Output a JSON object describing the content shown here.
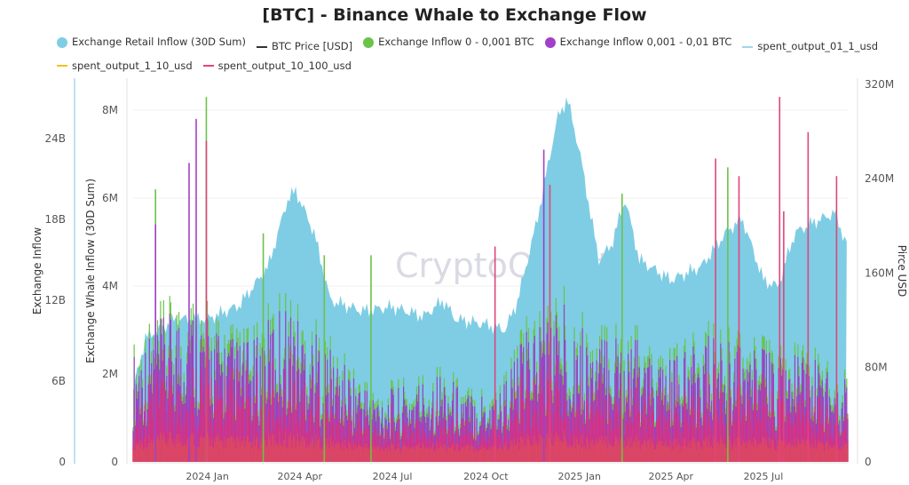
{
  "chart_data": {
    "type": "area",
    "title": "[BTC] - Binance Whale to Exchange Flow",
    "watermark": "CryptoQuant",
    "legend": [
      {
        "name": "Exchange Retail Inflow (30D Sum)",
        "color": "#7ecde4",
        "marker": "dot"
      },
      {
        "name": "BTC Price [USD]",
        "color": "#333333",
        "marker": "line"
      },
      {
        "name": "Exchange Inflow 0 - 0,001 BTC",
        "color": "#6cc24a",
        "marker": "dot"
      },
      {
        "name": "Exchange Inflow 0,001 - 0,01 BTC",
        "color": "#a23fc9",
        "marker": "dot"
      },
      {
        "name": "spent_output_01_1_usd",
        "color": "#9fd6ee",
        "marker": "line"
      },
      {
        "name": "spent_output_1_10_usd",
        "color": "#f0c419",
        "marker": "line"
      },
      {
        "name": "spent_output_10_100_usd",
        "color": "#e0457b",
        "marker": "line"
      }
    ],
    "legend_placement": "top",
    "x_axis": {
      "type": "date",
      "range": [
        "2023-10-20",
        "2025-09-22"
      ],
      "ticks": [
        "2024-01-01",
        "2024-04-01",
        "2024-07-01",
        "2024-10-01",
        "2025-01-01",
        "2025-04-01",
        "2025-07-01"
      ],
      "tick_labels": [
        "2024 Jan",
        "2024 Apr",
        "2024 Jul",
        "2024 Oct",
        "2025 Jan",
        "2025 Apr",
        "2025 Jul"
      ]
    },
    "y_axes": {
      "left_outer": {
        "label": "Exchange Inflow",
        "range": [
          0,
          30
        ],
        "unit": "B",
        "tick_labels": [
          "0",
          "6B",
          "12B",
          "18B",
          "24B"
        ]
      },
      "left_inner": {
        "label": "Exchange Whale Inflow (30D Sum)",
        "range": [
          0,
          8.4
        ],
        "unit": "M",
        "tick_labels": [
          "0",
          "2M",
          "4M",
          "6M",
          "8M"
        ]
      },
      "right": {
        "label": "Pirce USD",
        "range": [
          0,
          320
        ],
        "unit": "M",
        "tick_labels": [
          "0",
          "80M",
          "160M",
          "240M",
          "320M"
        ]
      }
    },
    "grid": true,
    "retail_inflow_30d_B": [
      [
        "2023-10-20",
        5.3
      ],
      [
        "2023-11-01",
        9.2
      ],
      [
        "2023-12-01",
        10.6
      ],
      [
        "2024-01-01",
        10.6
      ],
      [
        "2024-02-01",
        11.6
      ],
      [
        "2024-03-01",
        14.5
      ],
      [
        "2024-03-20",
        19.5
      ],
      [
        "2024-03-28",
        20.1
      ],
      [
        "2024-04-15",
        17.0
      ],
      [
        "2024-05-01",
        12.0
      ],
      [
        "2024-06-01",
        11.2
      ],
      [
        "2024-07-01",
        11.5
      ],
      [
        "2024-08-01",
        10.8
      ],
      [
        "2024-08-20",
        12.0
      ],
      [
        "2024-09-01",
        10.6
      ],
      [
        "2024-10-01",
        10.2
      ],
      [
        "2024-10-20",
        9.8
      ],
      [
        "2024-11-01",
        11.9
      ],
      [
        "2024-11-20",
        17.8
      ],
      [
        "2024-12-10",
        25.4
      ],
      [
        "2024-12-20",
        27.0
      ],
      [
        "2025-01-01",
        23.1
      ],
      [
        "2025-01-20",
        15.0
      ],
      [
        "2025-02-01",
        16.0
      ],
      [
        "2025-02-15",
        19.5
      ],
      [
        "2025-03-01",
        15.0
      ],
      [
        "2025-04-01",
        13.5
      ],
      [
        "2025-05-01",
        14.5
      ],
      [
        "2025-05-25",
        17.0
      ],
      [
        "2025-06-10",
        18.1
      ],
      [
        "2025-07-01",
        13.5
      ],
      [
        "2025-07-15",
        13.0
      ],
      [
        "2025-08-01",
        17.0
      ],
      [
        "2025-08-20",
        17.8
      ],
      [
        "2025-09-10",
        18.5
      ],
      [
        "2025-09-20",
        16.2
      ]
    ],
    "inflow_0_001_01_typical_M": [
      [
        "2023-10-20",
        2.0
      ],
      [
        "2023-11-15",
        2.6
      ],
      [
        "2023-12-15",
        3.0
      ],
      [
        "2024-01-15",
        2.4
      ],
      [
        "2024-02-15",
        2.2
      ],
      [
        "2024-03-15",
        3.0
      ],
      [
        "2024-04-15",
        2.4
      ],
      [
        "2024-05-15",
        1.8
      ],
      [
        "2024-06-15",
        1.3
      ],
      [
        "2024-07-15",
        1.4
      ],
      [
        "2024-08-15",
        1.7
      ],
      [
        "2024-09-15",
        1.3
      ],
      [
        "2024-10-15",
        1.4
      ],
      [
        "2024-11-15",
        2.6
      ],
      [
        "2024-12-15",
        3.0
      ],
      [
        "2025-01-15",
        2.2
      ],
      [
        "2025-02-15",
        2.6
      ],
      [
        "2025-03-15",
        1.8
      ],
      [
        "2025-04-15",
        2.0
      ],
      [
        "2025-05-15",
        2.4
      ],
      [
        "2025-06-15",
        2.2
      ],
      [
        "2025-07-15",
        2.0
      ],
      [
        "2025-08-15",
        2.0
      ],
      [
        "2025-09-20",
        1.6
      ]
    ],
    "spikes_M": [
      {
        "date": "2023-11-11",
        "series": "Exchange Inflow 0 - 0,001 BTC",
        "value": 6.2
      },
      {
        "date": "2023-11-11",
        "series": "Exchange Inflow 0,001 - 0,01 BTC",
        "value": 5.4
      },
      {
        "date": "2023-12-14",
        "series": "Exchange Inflow 0,001 - 0,01 BTC",
        "value": 6.8
      },
      {
        "date": "2023-12-21",
        "series": "Exchange Inflow 0,001 - 0,01 BTC",
        "value": 7.8
      },
      {
        "date": "2023-12-31",
        "series": "Exchange Inflow 0 - 0,001 BTC",
        "value": 8.3
      },
      {
        "date": "2023-12-31",
        "series": "spent_output_10_100_usd",
        "value": 7.3
      },
      {
        "date": "2024-02-25",
        "series": "Exchange Inflow 0 - 0,001 BTC",
        "value": 5.2
      },
      {
        "date": "2024-04-25",
        "series": "Exchange Inflow 0 - 0,001 BTC",
        "value": 4.7
      },
      {
        "date": "2024-06-10",
        "series": "Exchange Inflow 0 - 0,001 BTC",
        "value": 4.7
      },
      {
        "date": "2024-10-10",
        "series": "spent_output_10_100_usd",
        "value": 4.9
      },
      {
        "date": "2024-11-27",
        "series": "Exchange Inflow 0,001 - 0,01 BTC",
        "value": 7.1
      },
      {
        "date": "2024-12-03",
        "series": "spent_output_10_100_usd",
        "value": 6.3
      },
      {
        "date": "2025-02-12",
        "series": "Exchange Inflow 0 - 0,001 BTC",
        "value": 6.1
      },
      {
        "date": "2025-05-15",
        "series": "spent_output_10_100_usd",
        "value": 6.9
      },
      {
        "date": "2025-05-27",
        "series": "Exchange Inflow 0 - 0,001 BTC",
        "value": 6.7
      },
      {
        "date": "2025-06-07",
        "series": "spent_output_10_100_usd",
        "value": 6.5
      },
      {
        "date": "2025-07-17",
        "series": "spent_output_10_100_usd",
        "value": 8.3
      },
      {
        "date": "2025-07-21",
        "series": "spent_output_10_100_usd",
        "value": 5.7
      },
      {
        "date": "2025-08-14",
        "series": "spent_output_10_100_usd",
        "value": 7.5
      },
      {
        "date": "2025-09-11",
        "series": "spent_output_10_100_usd",
        "value": 6.5
      }
    ]
  }
}
